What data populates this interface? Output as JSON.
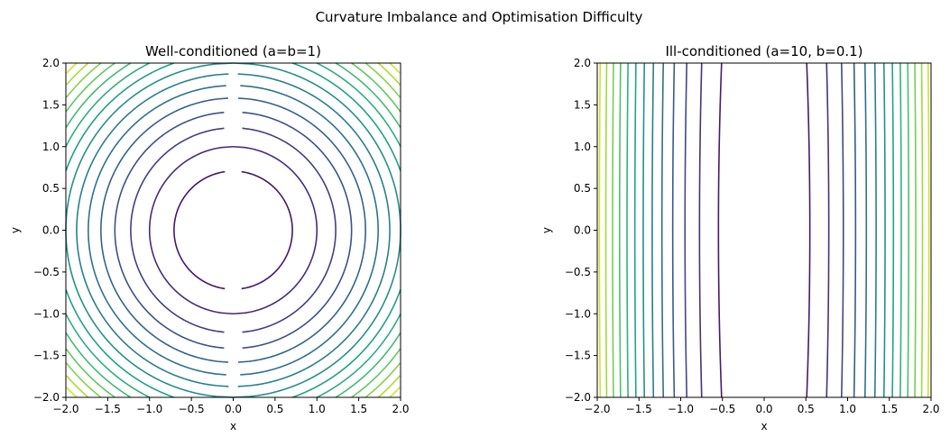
{
  "figure": {
    "suptitle": "Curvature Imbalance and Optimisation Difficulty"
  },
  "chart_data": [
    {
      "type": "contour",
      "title": "Well-conditioned (a=b=1)",
      "xlabel": "x",
      "ylabel": "y",
      "function": "f = a*x^2 + b*y^2",
      "a": 1,
      "b": 1,
      "xlim": [
        -2,
        2
      ],
      "ylim": [
        -2,
        2
      ],
      "ticks": [
        -2.0,
        -1.5,
        -1.0,
        -0.5,
        0.0,
        0.5,
        1.0,
        1.5,
        2.0
      ],
      "tick_labels": [
        "−2.0",
        "−1.5",
        "−1.0",
        "−0.5",
        "0.0",
        "0.5",
        "1.0",
        "1.5",
        "2.0"
      ],
      "levels": [
        0.5,
        1,
        1.5,
        2,
        2.5,
        3,
        3.5,
        4,
        4.5,
        5,
        5.5,
        6,
        6.5,
        7,
        7.5
      ],
      "color_range": [
        0,
        8
      ],
      "colormap": "viridis",
      "grid": false
    },
    {
      "type": "contour",
      "title": "Ill-conditioned (a=10, b=0.1)",
      "xlabel": "x",
      "ylabel": "y",
      "function": "f = a*x^2 + b*y^2",
      "a": 10,
      "b": 0.1,
      "xlim": [
        -2,
        2
      ],
      "ylim": [
        -2,
        2
      ],
      "ticks": [
        -2.0,
        -1.5,
        -1.0,
        -0.5,
        0.0,
        0.5,
        1.0,
        1.5,
        2.0
      ],
      "tick_labels": [
        "−2.0",
        "−1.5",
        "−1.0",
        "−0.5",
        "0.0",
        "0.5",
        "1.0",
        "1.5",
        "2.0"
      ],
      "levels": [
        3,
        6,
        9,
        12,
        15,
        18,
        21,
        24,
        27,
        30,
        33,
        36,
        39
      ],
      "color_range": [
        0,
        42
      ],
      "colormap": "viridis",
      "grid": false
    }
  ]
}
